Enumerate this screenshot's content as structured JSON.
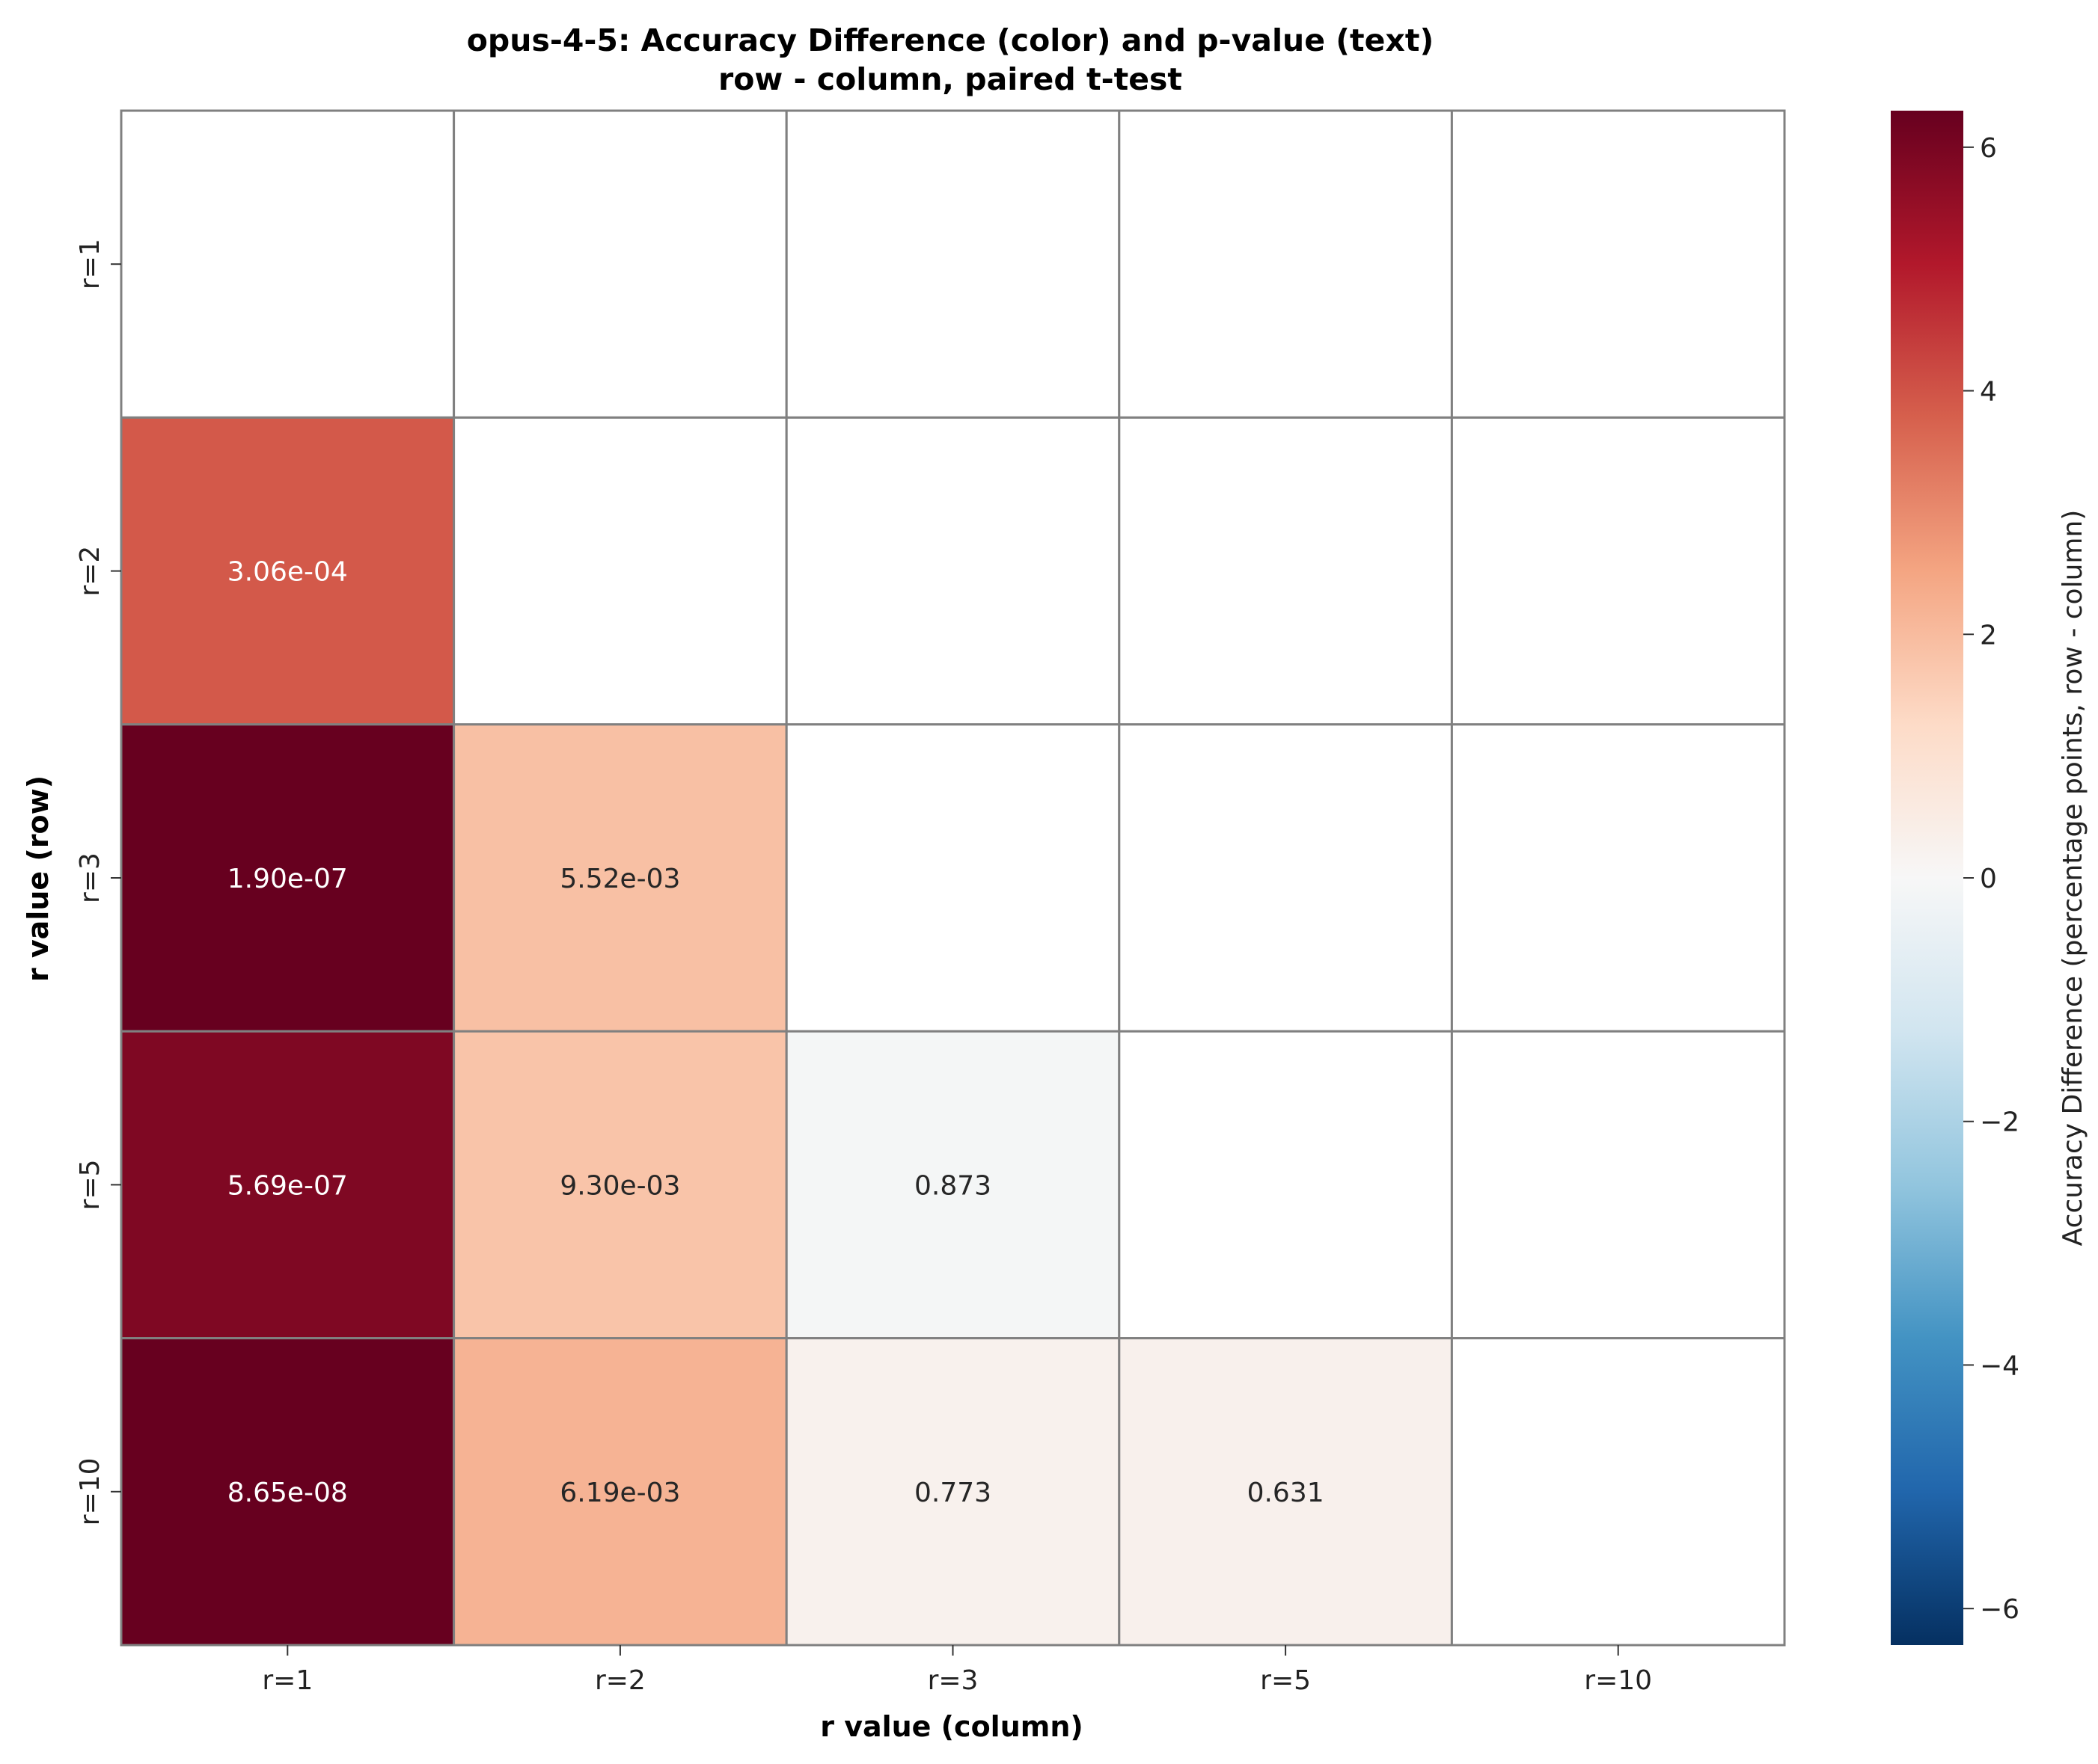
{
  "chart_data": {
    "type": "heatmap",
    "title": "opus-4-5: Accuracy Difference (color) and p-value (text)",
    "subtitle": "row - column, paired t-test",
    "xlabel": "r value (column)",
    "ylabel": "r value (row)",
    "x_categories": [
      "r=1",
      "r=2",
      "r=3",
      "r=5",
      "r=10"
    ],
    "y_categories": [
      "r=1",
      "r=2",
      "r=3",
      "r=5",
      "r=10"
    ],
    "values": [
      [
        null,
        null,
        null,
        null,
        null
      ],
      [
        3.9,
        null,
        null,
        null,
        null
      ],
      [
        6.3,
        1.9,
        null,
        null,
        null
      ],
      [
        5.9,
        1.8,
        -0.1,
        null,
        null
      ],
      [
        6.3,
        2.2,
        0.25,
        0.3,
        null
      ]
    ],
    "p_values": [
      [
        null,
        null,
        null,
        null,
        null
      ],
      [
        "3.06e-04",
        null,
        null,
        null,
        null
      ],
      [
        "1.90e-07",
        "5.52e-03",
        null,
        null,
        null
      ],
      [
        "5.69e-07",
        "9.30e-03",
        "0.873",
        null,
        null
      ],
      [
        "8.65e-08",
        "6.19e-03",
        "0.773",
        "0.631",
        null
      ]
    ],
    "colorbar": {
      "label": "Accuracy Difference (percentage points, row - column)",
      "range": [
        -6.3,
        6.3
      ],
      "ticks": [
        6,
        4,
        2,
        0,
        -2,
        -4,
        -6
      ],
      "tick_labels": [
        "6",
        "4",
        "2",
        "0",
        "−2",
        "−4",
        "−6"
      ],
      "colormap": "RdBu_r"
    },
    "colors": {
      "grid_line": "#808080",
      "empty_cell": "#ffffff",
      "text_dark_bg": "#ffffff",
      "text_light_bg": "#262626"
    }
  }
}
